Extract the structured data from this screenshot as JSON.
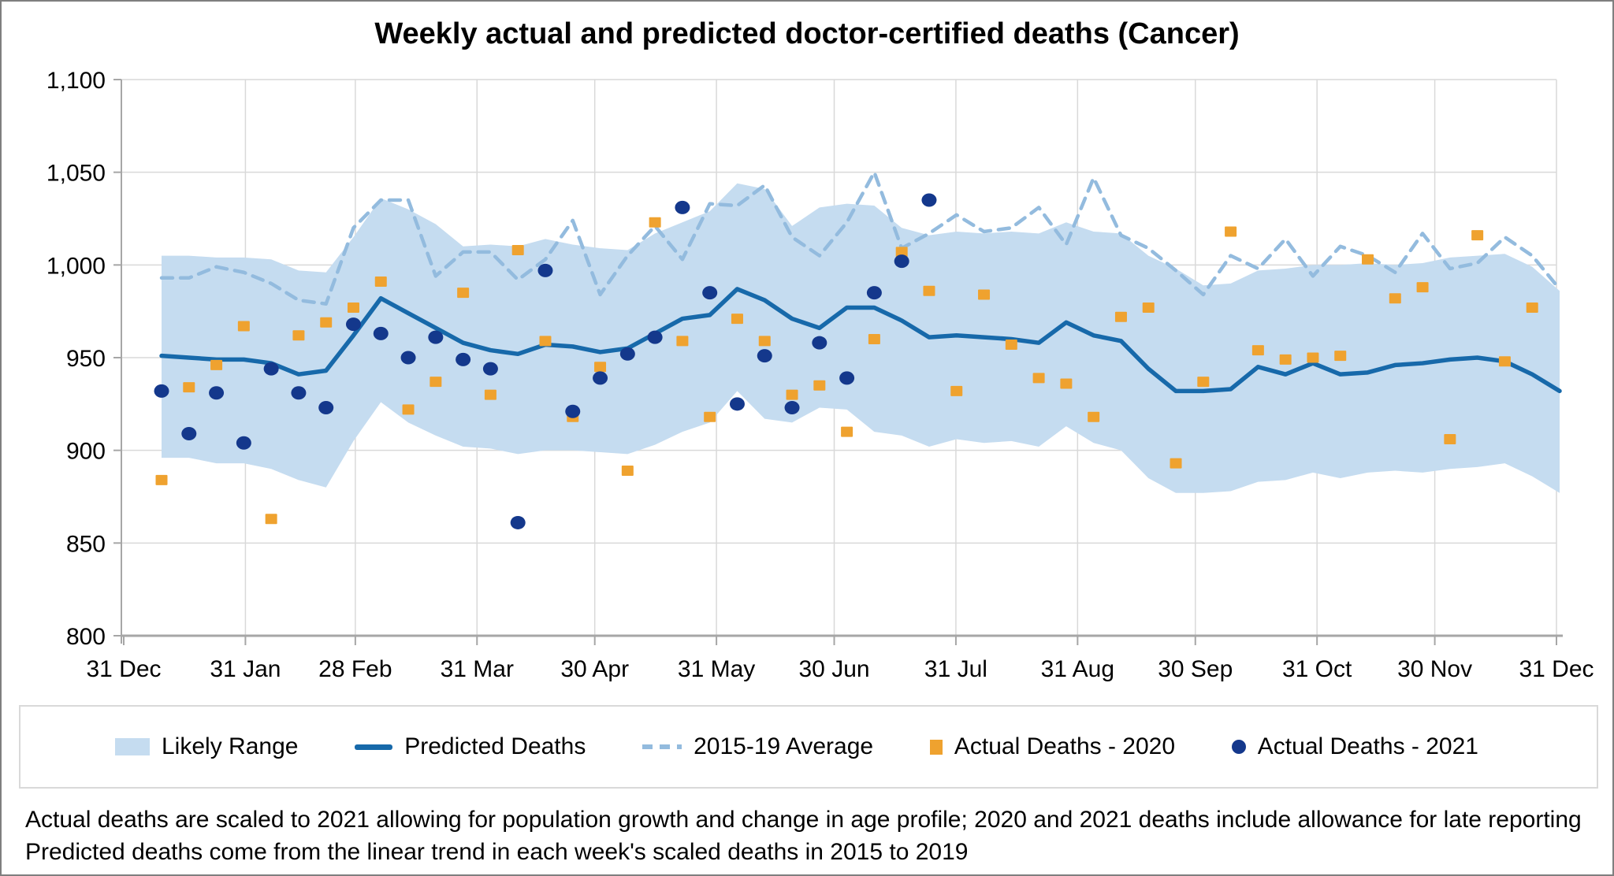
{
  "title": "Weekly actual and predicted doctor-certified deaths (Cancer)",
  "colors": {
    "band": "#C5DCF0",
    "predicted": "#1769AA",
    "average": "#93BBDE",
    "actual_2020": "#EFA22F",
    "actual_2021": "#14388C",
    "grid": "#D9D9D9",
    "axis": "#A6A6A6",
    "text": "#000000"
  },
  "legend": {
    "items": [
      {
        "label": "Likely Range",
        "swatch": "band"
      },
      {
        "label": "Predicted Deaths",
        "swatch": "line"
      },
      {
        "label": "2015-19 Average",
        "swatch": "dash"
      },
      {
        "label": "Actual Deaths - 2020",
        "swatch": "square"
      },
      {
        "label": "Actual Deaths - 2021",
        "swatch": "dot"
      }
    ]
  },
  "footnotes": [
    "Actual deaths are scaled to 2021 allowing for population growth and change in age profile; 2020 and 2021 deaths include allowance for late reporting",
    "Predicted deaths come from the linear trend in each week's scaled deaths in 2015 to 2019"
  ],
  "chart_data": {
    "type": "line",
    "title": "Weekly actual and predicted doctor-certified deaths (Cancer)",
    "xlabel": "",
    "ylabel": "",
    "ylim": [
      800,
      1100
    ],
    "grid": true,
    "legend_position": "bottom",
    "y_ticks": [
      800,
      850,
      900,
      950,
      1000,
      1050,
      1100
    ],
    "y_tick_labels": [
      "800",
      "850",
      "900",
      "950",
      "1,000",
      "1,050",
      "1,100"
    ],
    "x_tick_labels": [
      "31 Dec",
      "31 Jan",
      "28 Feb",
      "31 Mar",
      "30 Apr",
      "31 May",
      "30 Jun",
      "31 Jul",
      "31 Aug",
      "30 Sep",
      "31 Oct",
      "30 Nov",
      "31 Dec"
    ],
    "x_tick_days": [
      0,
      31,
      59,
      90,
      120,
      151,
      181,
      212,
      243,
      273,
      304,
      334,
      365
    ],
    "weeks": [
      "08 Jan",
      "15 Jan",
      "22 Jan",
      "29 Jan",
      "05 Feb",
      "12 Feb",
      "19 Feb",
      "26 Feb",
      "05 Mar",
      "12 Mar",
      "19 Mar",
      "26 Mar",
      "02 Apr",
      "09 Apr",
      "16 Apr",
      "23 Apr",
      "30 Apr",
      "07 May",
      "14 May",
      "21 May",
      "28 May",
      "04 Jun",
      "11 Jun",
      "18 Jun",
      "25 Jun",
      "02 Jul",
      "09 Jul",
      "16 Jul",
      "23 Jul",
      "30 Jul",
      "06 Aug",
      "13 Aug",
      "20 Aug",
      "27 Aug",
      "03 Sep",
      "10 Sep",
      "17 Sep",
      "24 Sep",
      "01 Oct",
      "08 Oct",
      "15 Oct",
      "22 Oct",
      "29 Oct",
      "05 Nov",
      "12 Nov",
      "19 Nov",
      "26 Nov",
      "03 Dec",
      "10 Dec",
      "17 Dec",
      "24 Dec",
      "31 Dec"
    ],
    "series": [
      {
        "name": "Likely Range",
        "type": "band",
        "upper": [
          1005,
          1005,
          1004,
          1004,
          1003,
          997,
          996,
          1015,
          1036,
          1030,
          1022,
          1010,
          1011,
          1010,
          1014,
          1011,
          1009,
          1008,
          1017,
          1023,
          1029,
          1044,
          1041,
          1021,
          1031,
          1033,
          1032,
          1020,
          1016,
          1018,
          1017,
          1018,
          1017,
          1023,
          1018,
          1017,
          1005,
          998,
          989,
          990,
          997,
          998,
          1000,
          1000,
          1001,
          1000,
          1001,
          1004,
          1005,
          1006,
          999,
          986
        ],
        "lower": [
          896,
          896,
          893,
          893,
          890,
          884,
          880,
          905,
          926,
          915,
          908,
          902,
          901,
          898,
          900,
          900,
          899,
          898,
          903,
          910,
          915,
          932,
          917,
          915,
          923,
          922,
          910,
          908,
          902,
          906,
          904,
          905,
          902,
          913,
          904,
          900,
          885,
          877,
          877,
          878,
          883,
          884,
          888,
          885,
          888,
          889,
          888,
          890,
          891,
          893,
          886,
          877
        ]
      },
      {
        "name": "Predicted Deaths",
        "type": "line",
        "values": [
          951,
          950,
          949,
          949,
          947,
          941,
          943,
          962,
          982,
          974,
          966,
          958,
          954,
          952,
          957,
          956,
          953,
          955,
          963,
          971,
          973,
          987,
          981,
          971,
          966,
          977,
          977,
          970,
          961,
          962,
          961,
          960,
          958,
          969,
          962,
          959,
          944,
          932,
          932,
          933,
          945,
          941,
          947,
          941,
          942,
          946,
          947,
          949,
          950,
          948,
          941,
          932
        ]
      },
      {
        "name": "2015-19 Average",
        "type": "dashed-line",
        "values": [
          993,
          993,
          999,
          996,
          990,
          981,
          979,
          1020,
          1035,
          1035,
          994,
          1007,
          1007,
          992,
          1003,
          1024,
          984,
          1005,
          1021,
          1003,
          1033,
          1032,
          1043,
          1015,
          1005,
          1023,
          1050,
          1009,
          1017,
          1027,
          1018,
          1020,
          1031,
          1011,
          1047,
          1016,
          1009,
          997,
          984,
          1005,
          998,
          1014,
          994,
          1010,
          1005,
          996,
          1017,
          998,
          1001,
          1015,
          1005,
          987
        ]
      },
      {
        "name": "Actual Deaths - 2020",
        "type": "scatter-square",
        "values": [
          884,
          934,
          946,
          967,
          863,
          962,
          969,
          977,
          991,
          922,
          937,
          985,
          930,
          1008,
          959,
          918,
          945,
          889,
          1023,
          959,
          918,
          971,
          959,
          930,
          935,
          910,
          960,
          1007,
          986,
          932,
          984,
          957,
          939,
          936,
          918,
          972,
          977,
          893,
          937,
          1018,
          954,
          949,
          950,
          951,
          1003,
          982,
          988,
          906,
          1016,
          948,
          977,
          null
        ]
      },
      {
        "name": "Actual Deaths - 2021",
        "type": "scatter-circle",
        "values": [
          932,
          909,
          931,
          904,
          944,
          931,
          923,
          968,
          963,
          950,
          961,
          949,
          944,
          861,
          997,
          921,
          939,
          952,
          961,
          1031,
          985,
          925,
          951,
          923,
          958,
          939,
          985,
          1002,
          1035,
          null,
          null,
          null,
          null,
          null,
          null,
          null,
          null,
          null,
          null,
          null,
          null,
          null,
          null,
          null,
          null,
          null,
          null,
          null,
          null,
          null,
          null,
          null
        ]
      }
    ]
  }
}
